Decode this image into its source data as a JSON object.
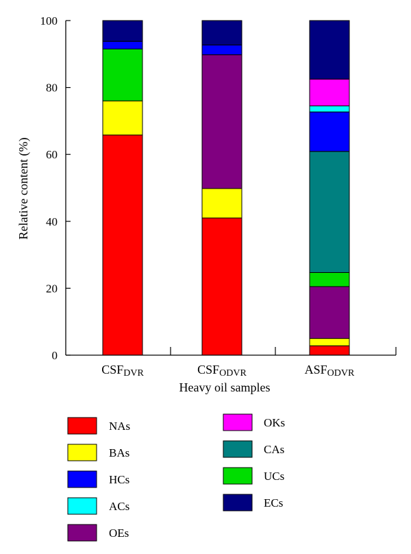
{
  "chart_data": {
    "type": "bar",
    "stacked": true,
    "title": "",
    "xlabel": "Heavy oil samples",
    "ylabel": "Relative content (%)",
    "ylim": [
      0,
      100
    ],
    "yticks": [
      0,
      20,
      40,
      60,
      80,
      100
    ],
    "grid": false,
    "legend_position": "bottom",
    "categories": [
      {
        "main": "CSF",
        "sub": "DVR"
      },
      {
        "main": "CSF",
        "sub": "ODVR"
      },
      {
        "main": "ASF",
        "sub": "ODVR"
      }
    ],
    "series": [
      {
        "name": "NAs",
        "color": "#ff0000",
        "values": [
          65.8,
          41.0,
          2.8
        ]
      },
      {
        "name": "BAs",
        "color": "#ffff00",
        "values": [
          10.2,
          8.8,
          2.2
        ]
      },
      {
        "name": "OEs",
        "color": "#800080",
        "values": [
          0.0,
          40.0,
          15.5
        ]
      },
      {
        "name": "UCs",
        "color": "#00dd00",
        "values": [
          15.5,
          0.0,
          4.2
        ]
      },
      {
        "name": "CAs",
        "color": "#008080",
        "values": [
          0.0,
          0.0,
          36.2
        ]
      },
      {
        "name": "HCs",
        "color": "#0000ff",
        "values": [
          2.3,
          2.9,
          11.8
        ]
      },
      {
        "name": "ACs",
        "color": "#00ffff",
        "values": [
          0.0,
          0.0,
          1.8
        ]
      },
      {
        "name": "OKs",
        "color": "#ff00ff",
        "values": [
          0.0,
          0.0,
          8.0
        ]
      },
      {
        "name": "ECs",
        "color": "#000080",
        "values": [
          6.2,
          7.3,
          17.5
        ]
      }
    ],
    "legend": {
      "left": [
        "NAs",
        "BAs",
        "HCs",
        "ACs",
        "OEs"
      ],
      "right": [
        "OKs",
        "CAs",
        "UCs",
        "ECs"
      ]
    }
  }
}
